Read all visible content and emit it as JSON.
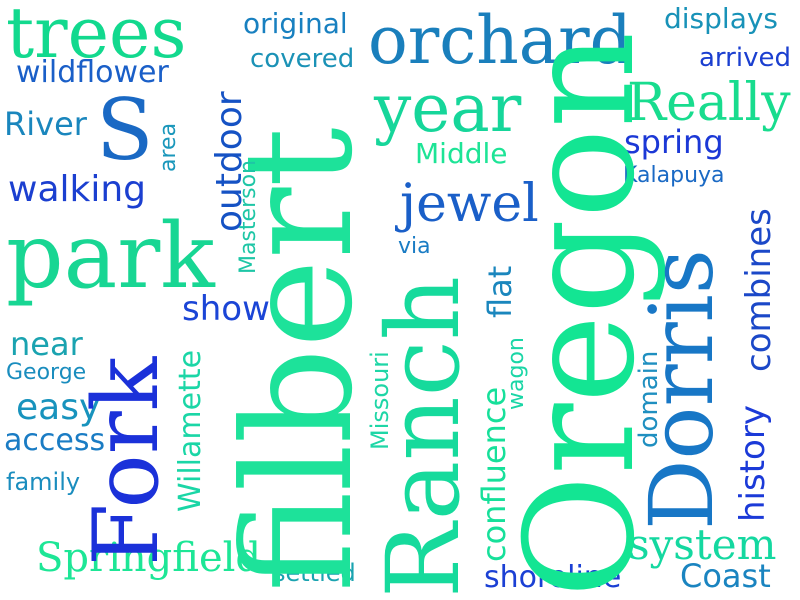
{
  "words": {
    "filbert": {
      "text": "filbert",
      "color": "#1de29a"
    },
    "oregon": {
      "text": "Oregon",
      "color": "#13e593"
    },
    "ranch": {
      "text": "Ranch",
      "color": "#16da9c"
    },
    "dorris": {
      "text": "Dorris",
      "color": "#1877c6"
    },
    "fork": {
      "text": "Fork",
      "color": "#1b31d9"
    },
    "park": {
      "text": "park",
      "color": "#18d693"
    },
    "orchard": {
      "text": "orchard",
      "color": "#1a7fbc"
    },
    "trees": {
      "text": "trees",
      "color": "#12d98e"
    },
    "year": {
      "text": "year",
      "color": "#16d69a"
    },
    "s": {
      "text": "S",
      "color": "#1a69c4"
    },
    "really": {
      "text": "Really",
      "color": "#18dc8e"
    },
    "jewel": {
      "text": "jewel",
      "color": "#1a5fc8"
    },
    "outdoor": {
      "text": "outdoor",
      "color": "#1552c4"
    },
    "walking": {
      "text": "walking",
      "color": "#1b3fd0"
    },
    "springfield": {
      "text": "Springfield",
      "color": "#1de696"
    },
    "system": {
      "text": "system",
      "color": "#14d8a0"
    },
    "combines": {
      "text": "combines",
      "color": "#1b48c8"
    },
    "history": {
      "text": "history",
      "color": "#1b3ad8"
    },
    "confluence": {
      "text": "confluence",
      "color": "#16e09a"
    },
    "willamette": {
      "text": "Willamette",
      "color": "#1ad6a6"
    },
    "flat": {
      "text": "flat",
      "color": "#1a86bd"
    },
    "wildflower": {
      "text": "wildflower",
      "color": "#1a5fc8"
    },
    "original": {
      "text": "original",
      "color": "#1880c0"
    },
    "displays": {
      "text": "displays",
      "color": "#1892b8"
    },
    "shoreline": {
      "text": "shoreline",
      "color": "#1b40d4"
    },
    "coast": {
      "text": "Coast",
      "color": "#1a84c0"
    },
    "easy": {
      "text": "easy",
      "color": "#1893bd"
    },
    "access": {
      "text": "access",
      "color": "#1a7cc4"
    },
    "show": {
      "text": "show",
      "color": "#1b45d6"
    },
    "spring": {
      "text": "spring",
      "color": "#1b38d6"
    },
    "middle": {
      "text": "Middle",
      "color": "#1de496"
    },
    "near": {
      "text": "near",
      "color": "#1aa3b0"
    },
    "river": {
      "text": "River",
      "color": "#1a86bd"
    },
    "covered": {
      "text": "covered",
      "color": "#1b92b6"
    },
    "arrived": {
      "text": "arrived",
      "color": "#1b3fd0"
    },
    "domain": {
      "text": "domain",
      "color": "#1f8fc0"
    },
    "missouri": {
      "text": "Missouri",
      "color": "#1ed6a6"
    },
    "masterson": {
      "text": "Masterson",
      "color": "#1ec6a6"
    },
    "kalapuya": {
      "text": "Kalapuya",
      "color": "#1a69c4"
    },
    "area": {
      "text": "area",
      "color": "#1a97bb"
    },
    "george": {
      "text": "George",
      "color": "#1a8dbe"
    },
    "family": {
      "text": "family",
      "color": "#1a8dbe"
    },
    "settled": {
      "text": "settled",
      "color": "#1aa3b0"
    },
    "wagon": {
      "text": "wagon",
      "color": "#1ad6a6"
    },
    "via": {
      "text": "via",
      "color": "#1a7cc4"
    }
  }
}
